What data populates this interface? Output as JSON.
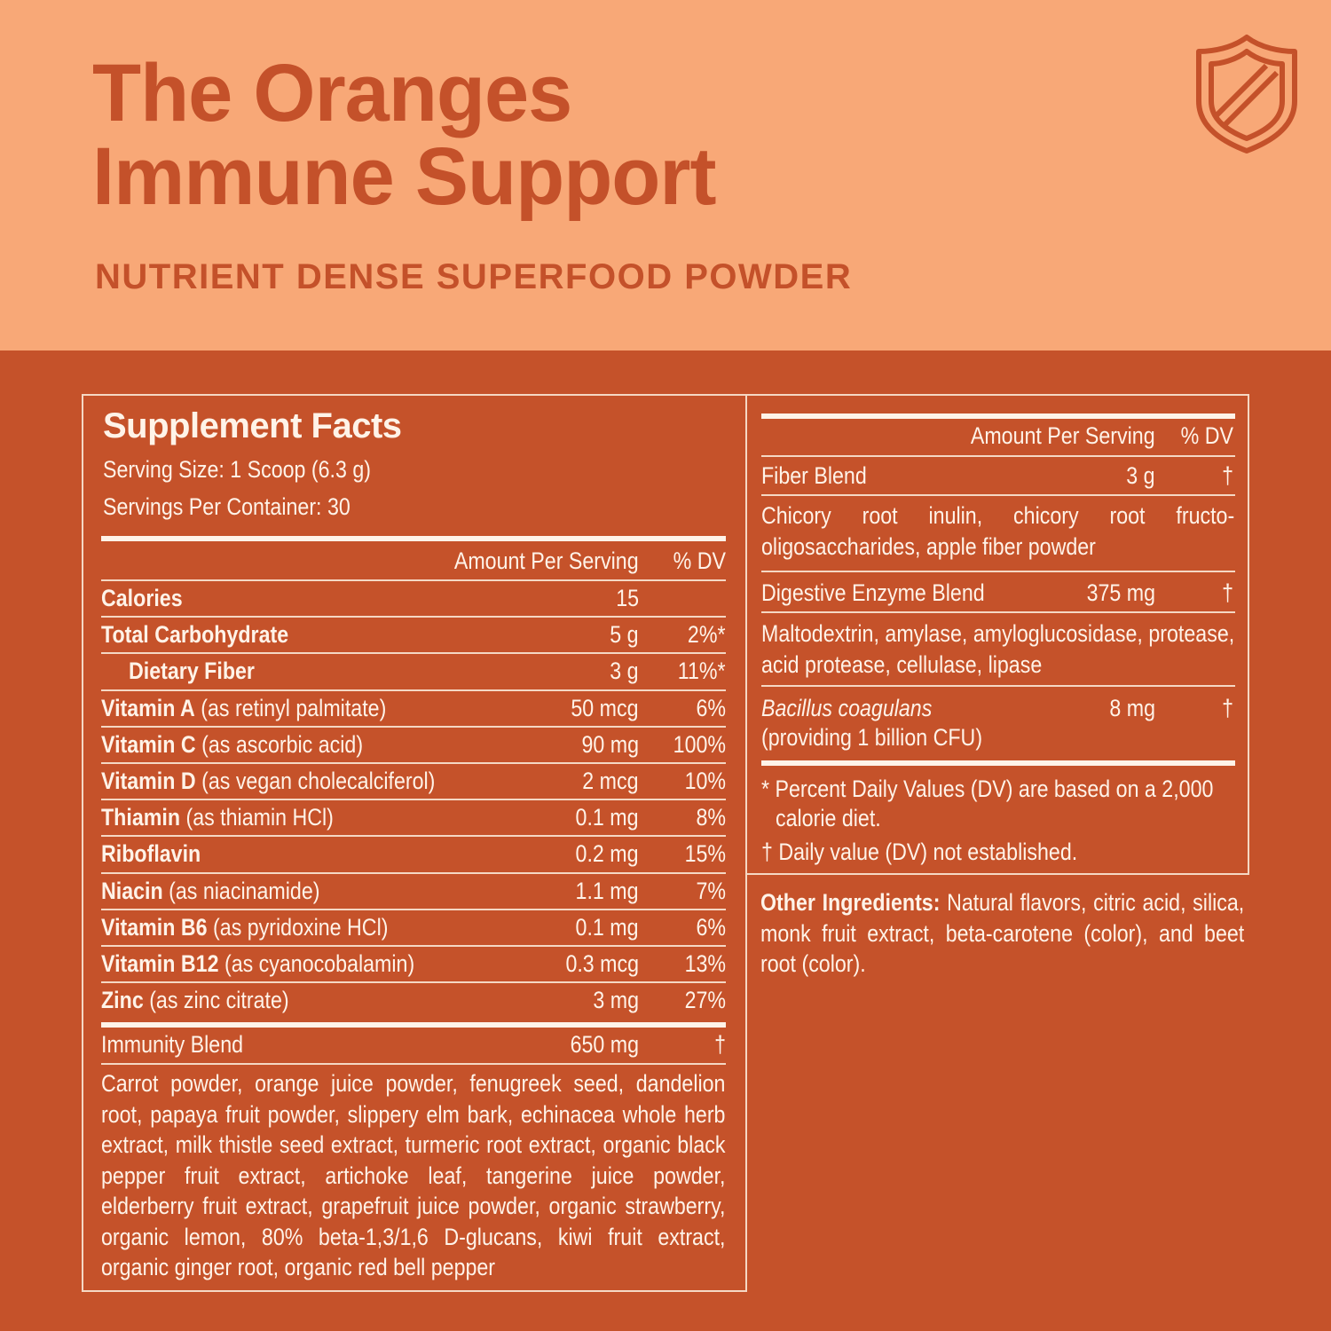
{
  "header": {
    "title_line1": "The Oranges",
    "title_line2": "Immune Support",
    "subtitle": "NUTRIENT DENSE SUPERFOOD POWDER",
    "icon": "shield-icon"
  },
  "colors": {
    "header_bg": "#F8A877",
    "body_bg": "#C5522A",
    "accent_text": "#C4512A",
    "label_text": "#FFF3E8"
  },
  "facts": {
    "title": "Supplement Facts",
    "serving_size": "Serving Size: 1 Scoop (6.3 g)",
    "servings_per_container": "Servings Per Container: 30",
    "col_amount": "Amount Per Serving",
    "col_dv": "% DV",
    "rows": [
      {
        "name": "Calories",
        "qualifier": "",
        "amount": "15",
        "dv": ""
      },
      {
        "name": "Total Carbohydrate",
        "qualifier": "",
        "amount": "5 g",
        "dv": "2%*"
      },
      {
        "name": "Dietary Fiber",
        "qualifier": "",
        "amount": "3 g",
        "dv": "11%*"
      },
      {
        "name": "Vitamin A",
        "qualifier": " (as retinyl palmitate)",
        "amount": "50 mcg",
        "dv": "6%"
      },
      {
        "name": "Vitamin C",
        "qualifier": " (as ascorbic acid)",
        "amount": "90 mg",
        "dv": "100%"
      },
      {
        "name": "Vitamin D",
        "qualifier": " (as vegan cholecalciferol)",
        "amount": "2 mcg",
        "dv": "10%"
      },
      {
        "name": "Thiamin",
        "qualifier": " (as thiamin HCl)",
        "amount": "0.1 mg",
        "dv": "8%"
      },
      {
        "name": "Riboflavin",
        "qualifier": "",
        "amount": "0.2 mg",
        "dv": "15%"
      },
      {
        "name": "Niacin",
        "qualifier": " (as niacinamide)",
        "amount": "1.1 mg",
        "dv": "7%"
      },
      {
        "name": "Vitamin B6",
        "qualifier": " (as pyridoxine HCl)",
        "amount": "0.1 mg",
        "dv": "6%"
      },
      {
        "name": "Vitamin B12",
        "qualifier": " (as cyanocobalamin)",
        "amount": "0.3 mcg",
        "dv": "13%"
      },
      {
        "name": "Zinc",
        "qualifier": " (as zinc citrate)",
        "amount": "3 mg",
        "dv": "27%"
      }
    ],
    "immunity_blend": {
      "name": "Immunity Blend",
      "amount": "650 mg",
      "dv": "†"
    },
    "immunity_ingredients": "Carrot powder, orange juice powder, fenugreek seed, dandelion root, papaya fruit powder, slippery elm bark, echinacea whole herb extract, milk thistle seed extract, turmeric root extract, organic black pepper fruit extract, artichoke leaf, tangerine juice powder, elderberry fruit extract, grapefruit juice powder, organic strawberry, organic lemon, 80% beta-1,3/1,6 D-glucans, kiwi fruit extract, organic ginger root, organic red bell pepper"
  },
  "facts_right": {
    "col_amount": "Amount Per Serving",
    "col_dv": "% DV",
    "fiber_blend": {
      "name": "Fiber Blend",
      "amount": "3 g",
      "dv": "†"
    },
    "fiber_ingredients": "Chicory root inulin, chicory root fructo-oligosaccharides, apple fiber powder",
    "enzyme_blend": {
      "name": "Digestive Enzyme Blend",
      "amount": "375 mg",
      "dv": "†"
    },
    "enzyme_ingredients": "Maltodextrin, amylase, amyloglucosidase, protease, acid protease, cellulase, lipase",
    "probiotic": {
      "name": "Bacillus coagulans",
      "detail": "(providing 1 billion CFU)",
      "amount": "8 mg",
      "dv": "†"
    },
    "footnote_star": "* Percent Daily Values (DV) are based on a 2,000",
    "footnote_star_cont": "calorie diet.",
    "footnote_dagger": "† Daily value (DV) not established."
  },
  "other_ingredients": {
    "label": "Other Ingredients:",
    "text": " Natural flavors, citric acid, silica, monk fruit extract, beta-carotene (color), and beet root (color)."
  }
}
